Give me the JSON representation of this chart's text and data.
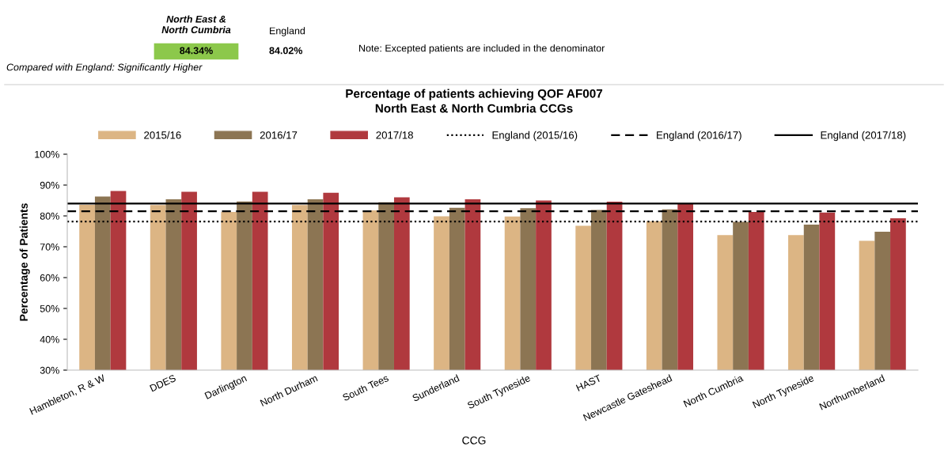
{
  "chart_data": {
    "type": "bar",
    "title": "Percentage of patients achieving QOF AF007\nNorth East & North Cumbria CCGs",
    "xlabel": "CCG",
    "ylabel": "Percentage of Patients",
    "categories": [
      "Hambleton, R & W",
      "DDES",
      "Darlington",
      "North Durham",
      "South Tees",
      "Sunderland",
      "South Tyneside",
      "HAST",
      "Newcastle Gateshead",
      "North Cumbria",
      "North Tyneside",
      "Northumberland"
    ],
    "series": [
      {
        "name": "2015/16",
        "color": "#dcb584",
        "values": [
          83.6,
          83.5,
          81.3,
          83.5,
          81.8,
          79.9,
          79.8,
          76.8,
          78.3,
          73.8,
          73.8,
          71.9
        ]
      },
      {
        "name": "2016/17",
        "color": "#8c7553",
        "values": [
          86.3,
          85.4,
          84.7,
          85.4,
          84.4,
          82.6,
          82.5,
          81.9,
          82.1,
          78.1,
          77.2,
          74.9
        ]
      },
      {
        "name": "2017/18",
        "color": "#b0393e",
        "values": [
          88.1,
          87.8,
          87.8,
          87.5,
          86.0,
          85.4,
          85.0,
          84.6,
          84.0,
          81.3,
          81.1,
          79.2
        ]
      }
    ],
    "ref_lines": [
      {
        "axis": "y",
        "value": 78.2,
        "label": "England (2015/16)",
        "color": "#000000",
        "line_style": "dotted"
      },
      {
        "axis": "y",
        "value": 81.5,
        "label": "England (2016/17)",
        "color": "#000000",
        "line_style": "dashed"
      },
      {
        "axis": "y",
        "value": 84.0,
        "label": "England (2017/18)",
        "color": "#000000",
        "line_style": "solid"
      }
    ],
    "ylim": [
      30,
      100
    ],
    "yticks": [
      {
        "value": 30,
        "label": "30%"
      },
      {
        "value": 40,
        "label": "40%"
      },
      {
        "value": 50,
        "label": "50%"
      },
      {
        "value": 60,
        "label": "60%"
      },
      {
        "value": 70,
        "label": "70%"
      },
      {
        "value": 80,
        "label": "80%"
      },
      {
        "value": 90,
        "label": "90%"
      },
      {
        "value": 100,
        "label": "100%"
      }
    ],
    "grid": false,
    "legend": "top",
    "annotations": [
      "North East &\nNorth Cumbria",
      "England",
      "84.34%",
      "84.02%",
      "Compared with England: Significantly Higher",
      "Note: Excepted patients are included in the denominator"
    ]
  }
}
